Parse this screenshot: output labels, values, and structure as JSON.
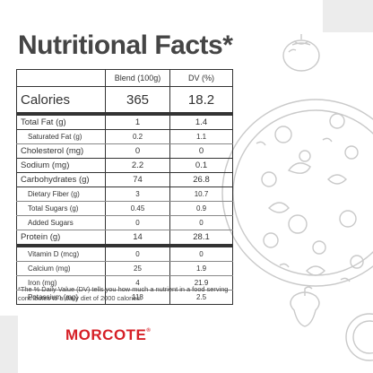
{
  "title": "Nutritional Facts*",
  "table": {
    "headers": [
      "",
      "Blend (100g)",
      "DV (%)"
    ],
    "calories": {
      "label": "Calories",
      "blend": "365",
      "dv": "18.2"
    },
    "rows": [
      {
        "label": "Total Fat (g)",
        "blend": "1",
        "dv": "1.4"
      },
      {
        "label": "Saturated Fat (g)",
        "blend": "0.2",
        "dv": "1.1"
      },
      {
        "label": "Cholesterol (mg)",
        "blend": "0",
        "dv": "0"
      },
      {
        "label": "Sodium (mg)",
        "blend": "2.2",
        "dv": "0.1"
      },
      {
        "label": "Carbohydrates (g)",
        "blend": "74",
        "dv": "26.8"
      },
      {
        "label": "Dietary Fiber (g)",
        "blend": "3",
        "dv": "10.7"
      },
      {
        "label": "Total Sugars (g)",
        "blend": "0.45",
        "dv": "0.9"
      },
      {
        "label": "Added Sugars",
        "blend": "0",
        "dv": "0"
      },
      {
        "label": "Protein (g)",
        "blend": "14",
        "dv": "28.1"
      },
      {
        "label": "Vitamin D (mcg)",
        "blend": "0",
        "dv": "0"
      },
      {
        "label": "Calcium (mg)",
        "blend": "25",
        "dv": "1.9"
      },
      {
        "label": "Iron (mg)",
        "blend": "4",
        "dv": "21.9"
      },
      {
        "label": "Potassium (mg)",
        "blend": "118",
        "dv": "2.5"
      }
    ]
  },
  "footnote": "*The % Daily Value (DV) tells you how much a nutrient in a food serving contributes to a daily diet of 2000 calories.",
  "logo": {
    "name": "MORCOTE",
    "mark": "®"
  },
  "colors": {
    "brand": "#d62027",
    "text": "#333333",
    "sketch": "#c9c9c9",
    "corner": "#ececec"
  },
  "illustrations": [
    "tomato-icon",
    "pizza-icon",
    "bell-pepper-icon"
  ]
}
